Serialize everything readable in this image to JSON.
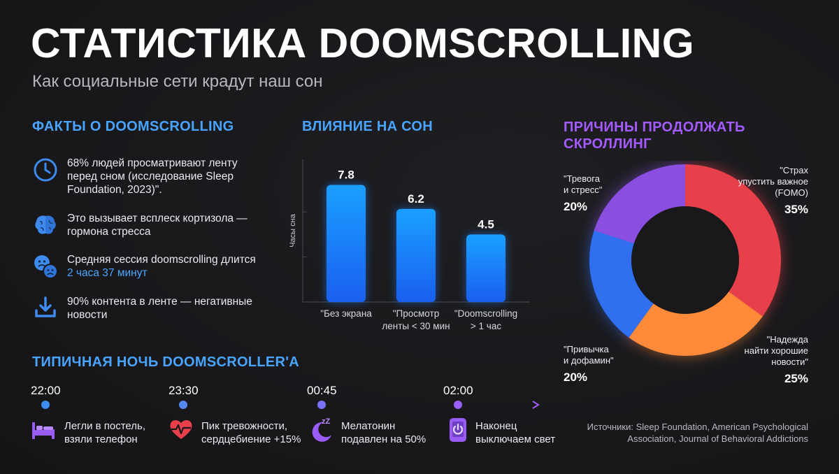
{
  "title": "СТАТИСТИКА DOOMSCROLLING",
  "subtitle": "Как социальные сети крадут наш сон",
  "facts": {
    "heading": "ФАКТЫ О DOOMSCROLLING",
    "items": [
      {
        "icon": "clock-icon",
        "text": "68% людей просматривают ленту перед сном (исследование Sleep Foundation, 2023)\"."
      },
      {
        "icon": "brain-icon",
        "text": "Это вызывает всплеск кортизола — гормона стресса"
      },
      {
        "icon": "sad-faces-icon",
        "text_before": "Средняя сессия doomscrolling длится ",
        "highlight": "2 часа 37 минут"
      },
      {
        "icon": "arrow-down-icon",
        "text": "90% контента в ленте — негативные новости"
      }
    ]
  },
  "sleep": {
    "heading": "ВЛИЯНИЕ НА СОН"
  },
  "reasons": {
    "heading_line1": "ПРИЧИНЫ ПРОДОЛЖАТЬ",
    "heading_line2": "СКРОЛЛИНГ"
  },
  "timeline": {
    "heading": "ТИПИЧНАЯ НОЧЬ DOOMSCROLLER'A",
    "events": [
      {
        "time": "22:00",
        "icon": "bed-icon",
        "line1": "Легли в постель,",
        "line2": "взяли телефон"
      },
      {
        "time": "23:30",
        "icon": "heartbeat-icon",
        "line1": "Пик тревожности,",
        "line2": "сердцебиение +15%"
      },
      {
        "time": "00:45",
        "icon": "moon-icon",
        "line1": "Мелатонин",
        "line2": "подавлен на 50%"
      },
      {
        "time": "02:00",
        "icon": "phone-off-icon",
        "line1": "Наконец",
        "line2": "выключаем свет"
      }
    ]
  },
  "sources": "Источники: Sleep Foundation, American Psychological Association, Journal of Behavioral Addictions",
  "colors": {
    "blue": "#1f8fff",
    "purple": "#a35bff",
    "red": "#e8404a",
    "orange": "#ff8a3a",
    "royal": "#2f6ff0"
  },
  "chart_data": [
    {
      "type": "bar",
      "ylabel": "Часы сна",
      "ylim": [
        0,
        9.5
      ],
      "grid": false,
      "categories": [
        {
          "line1": "\"Без экрана",
          "line2": ""
        },
        {
          "line1": "\"Просмотр",
          "line2": "ленты < 30 мин"
        },
        {
          "line1": "\"Doomscrolling",
          "line2": "> 1 час"
        }
      ],
      "values": [
        7.8,
        6.2,
        4.5
      ],
      "value_labels": [
        "7.8",
        "6.2",
        "4.5"
      ]
    },
    {
      "type": "pie",
      "donut": true,
      "slices": [
        {
          "line1": "\"Страх",
          "line2": "упустить важное",
          "line3": "(FOMO)",
          "value": 35,
          "pct": "35%",
          "color": "#e8404a"
        },
        {
          "line1": "\"Надежда",
          "line2": "найти хорошие",
          "line3": "новости\"",
          "value": 25,
          "pct": "25%",
          "color": "#ff8a3a"
        },
        {
          "line1": "\"Привычка",
          "line2": "и дофамин\"",
          "line3": "",
          "value": 20,
          "pct": "20%",
          "color": "#2f6ff0"
        },
        {
          "line1": "\"Тревога",
          "line2": "и стресс\"",
          "line3": "",
          "value": 20,
          "pct": "20%",
          "color": "#8a4fe0"
        }
      ]
    }
  ]
}
